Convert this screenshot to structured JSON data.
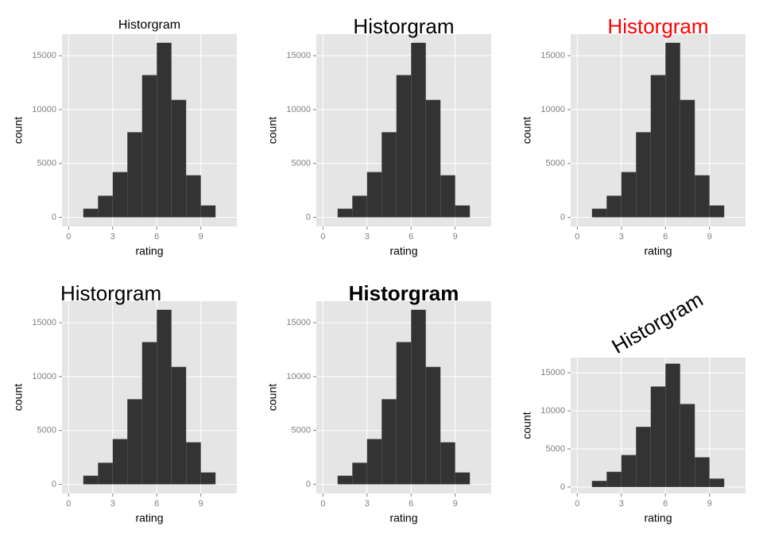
{
  "chart_data": [
    {
      "type": "histogram",
      "title": "Historgram",
      "title_size": "small",
      "title_color": "#000000",
      "title_face": "plain",
      "title_align": "center",
      "title_angle": 0,
      "xlabel": "rating",
      "ylabel": "count",
      "bins": [
        1,
        2,
        3,
        4,
        5,
        6,
        7,
        8,
        9,
        10
      ],
      "counts": [
        800,
        2000,
        4200,
        7900,
        13200,
        16200,
        10900,
        3900,
        1100
      ],
      "color": "#333333",
      "xlim": [
        -0.45,
        11.45
      ],
      "xticks": [
        0,
        3,
        6,
        9
      ],
      "ylim": [
        -850,
        17000
      ],
      "yticks": [
        0,
        5000,
        10000,
        15000
      ],
      "grid": true
    },
    {
      "type": "histogram",
      "title": "Historgram",
      "title_size": "large",
      "title_color": "#000000",
      "title_face": "plain",
      "title_align": "center",
      "title_angle": 0,
      "xlabel": "rating",
      "ylabel": "count",
      "bins": [
        1,
        2,
        3,
        4,
        5,
        6,
        7,
        8,
        9,
        10
      ],
      "counts": [
        800,
        2000,
        4200,
        7900,
        13200,
        16200,
        10900,
        3900,
        1100
      ],
      "color": "#333333",
      "xlim": [
        -0.45,
        11.45
      ],
      "xticks": [
        0,
        3,
        6,
        9
      ],
      "ylim": [
        -850,
        17000
      ],
      "yticks": [
        0,
        5000,
        10000,
        15000
      ],
      "grid": true
    },
    {
      "type": "histogram",
      "title": "Historgram",
      "title_size": "large",
      "title_color": "#ff0000",
      "title_face": "plain",
      "title_align": "center",
      "title_angle": 0,
      "xlabel": "rating",
      "ylabel": "count",
      "bins": [
        1,
        2,
        3,
        4,
        5,
        6,
        7,
        8,
        9,
        10
      ],
      "counts": [
        800,
        2000,
        4200,
        7900,
        13200,
        16200,
        10900,
        3900,
        1100
      ],
      "color": "#333333",
      "xlim": [
        -0.45,
        11.45
      ],
      "xticks": [
        0,
        3,
        6,
        9
      ],
      "ylim": [
        -850,
        17000
      ],
      "yticks": [
        0,
        5000,
        10000,
        15000
      ],
      "grid": true
    },
    {
      "type": "histogram",
      "title": "Historgram",
      "title_size": "large",
      "title_color": "#000000",
      "title_face": "plain",
      "title_align": "left",
      "title_angle": 0,
      "xlabel": "rating",
      "ylabel": "count",
      "bins": [
        1,
        2,
        3,
        4,
        5,
        6,
        7,
        8,
        9,
        10
      ],
      "counts": [
        800,
        2000,
        4200,
        7900,
        13200,
        16200,
        10900,
        3900,
        1100
      ],
      "color": "#333333",
      "xlim": [
        -0.45,
        11.45
      ],
      "xticks": [
        0,
        3,
        6,
        9
      ],
      "ylim": [
        -850,
        17000
      ],
      "yticks": [
        0,
        5000,
        10000,
        15000
      ],
      "grid": true
    },
    {
      "type": "histogram",
      "title": "Historgram",
      "title_size": "large",
      "title_color": "#000000",
      "title_face": "bold",
      "title_align": "center",
      "title_angle": 0,
      "xlabel": "rating",
      "ylabel": "count",
      "bins": [
        1,
        2,
        3,
        4,
        5,
        6,
        7,
        8,
        9,
        10
      ],
      "counts": [
        800,
        2000,
        4200,
        7900,
        13200,
        16200,
        10900,
        3900,
        1100
      ],
      "color": "#333333",
      "xlim": [
        -0.45,
        11.45
      ],
      "xticks": [
        0,
        3,
        6,
        9
      ],
      "ylim": [
        -850,
        17000
      ],
      "yticks": [
        0,
        5000,
        10000,
        15000
      ],
      "grid": true
    },
    {
      "type": "histogram",
      "title": "Historgram",
      "title_size": "large",
      "title_color": "#000000",
      "title_face": "plain",
      "title_align": "center",
      "title_angle": 30,
      "xlabel": "rating",
      "ylabel": "count",
      "bins": [
        1,
        2,
        3,
        4,
        5,
        6,
        7,
        8,
        9,
        10
      ],
      "counts": [
        800,
        2000,
        4200,
        7900,
        13200,
        16200,
        10900,
        3900,
        1100
      ],
      "color": "#333333",
      "xlim": [
        -0.45,
        11.45
      ],
      "xticks": [
        0,
        3,
        6,
        9
      ],
      "ylim": [
        -850,
        17000
      ],
      "yticks": [
        0,
        5000,
        10000,
        15000
      ],
      "grid": true
    }
  ]
}
